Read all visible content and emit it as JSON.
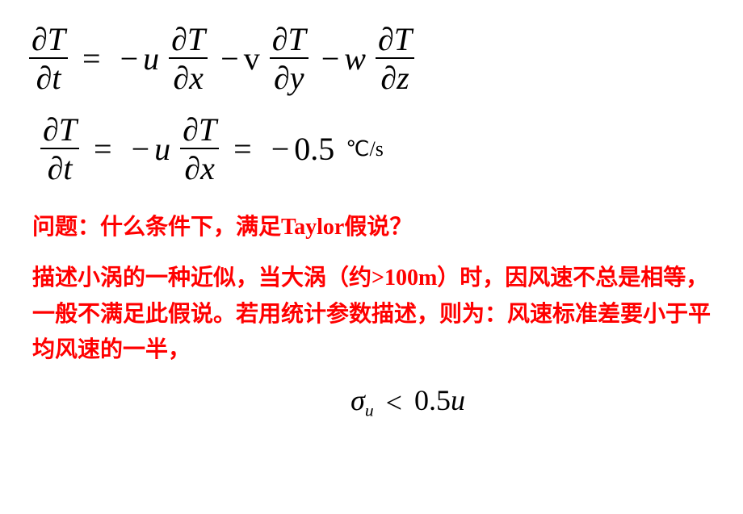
{
  "eq1": {
    "lhs_num": "∂T",
    "lhs_den": "∂t",
    "eq": "=",
    "t1_sign": "−",
    "t1_coef": "u",
    "t1_num": "∂T",
    "t1_den": "∂x",
    "t2_sign": "−",
    "t2_coef": "v",
    "t2_num": "∂T",
    "t2_den": "∂y",
    "t3_sign": "−",
    "t3_coef": "w",
    "t3_num": "∂T",
    "t3_den": "∂z"
  },
  "eq2": {
    "lhs_num": "∂T",
    "lhs_den": "∂t",
    "eq1": "=",
    "t1_sign": "−",
    "t1_coef": "u",
    "t1_num": "∂T",
    "t1_den": "∂x",
    "eq2": "=",
    "val_sign": "−",
    "val": "0.5",
    "unit": "℃/s"
  },
  "text": {
    "question": "问题：什么条件下，满足Taylor假说？",
    "paragraph": "描述小涡的一种近似，当大涡（约>100m）时，因风速不总是相等，一般不满足此假说。若用统计参数描述，则为：风速标准差要小于平均风速的一半，"
  },
  "eq3": {
    "sigma": "σ",
    "sub": "u",
    "lt": "<",
    "coef": "0.5",
    "var": "u"
  },
  "colors": {
    "text_black": "#000000",
    "text_red": "#ff0000",
    "background": "#ffffff"
  },
  "typography": {
    "eq_fontsize_pt": 30,
    "body_fontsize_pt": 21,
    "eq_font": "Times New Roman italic",
    "body_font": "SimSun bold"
  }
}
